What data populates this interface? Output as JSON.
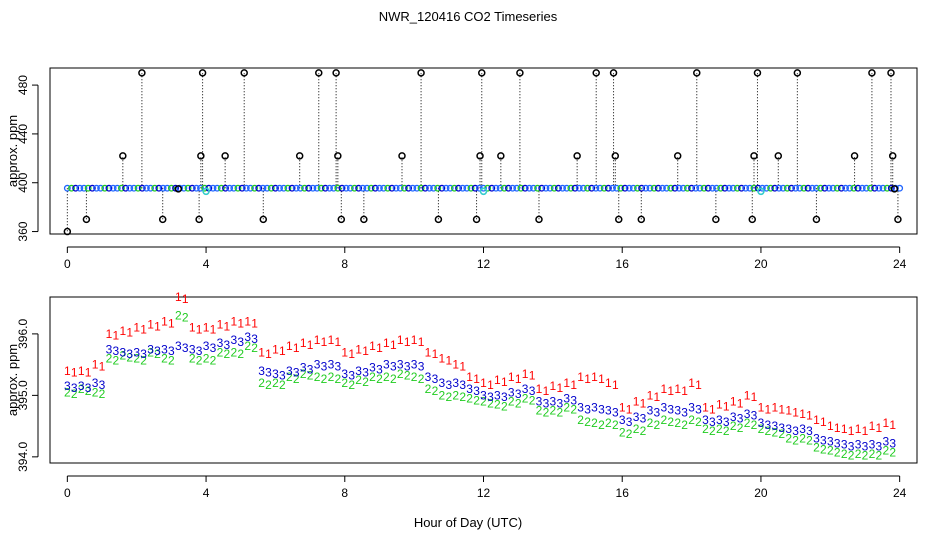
{
  "title": "NWR_120416  CO2 Timeseries",
  "xlabel": "Hour of Day (UTC)",
  "colors": {
    "series1": "#ff0000",
    "series2": "#22cc22",
    "series3": "#0000cc",
    "fill_top": "#2266ff",
    "highlight": "#33cccc",
    "markers": "#000000"
  },
  "chart_data": [
    {
      "type": "scatter",
      "panel": "top",
      "ylabel": "approx. ppm",
      "xlim": [
        -0.5,
        24.5
      ],
      "ylim": [
        358,
        494
      ],
      "xticks": [
        0,
        4,
        8,
        12,
        16,
        20,
        24
      ],
      "yticks": [
        360,
        400,
        440,
        480
      ],
      "tick_labels_x": [
        "0",
        "4",
        "8",
        "12",
        "16",
        "20",
        "24"
      ],
      "tick_labels_y": [
        "360",
        "400",
        "440",
        "480"
      ],
      "baseline": 395.5,
      "markers": [
        {
          "x": 0.0,
          "y": 360
        },
        {
          "x": 0.55,
          "y": 370
        },
        {
          "x": 1.6,
          "y": 422
        },
        {
          "x": 2.15,
          "y": 490
        },
        {
          "x": 2.75,
          "y": 370
        },
        {
          "x": 3.2,
          "y": 395
        },
        {
          "x": 3.8,
          "y": 370
        },
        {
          "x": 3.85,
          "y": 422
        },
        {
          "x": 3.9,
          "y": 490
        },
        {
          "x": 4.55,
          "y": 422
        },
        {
          "x": 5.1,
          "y": 490
        },
        {
          "x": 5.65,
          "y": 370
        },
        {
          "x": 6.7,
          "y": 422
        },
        {
          "x": 7.25,
          "y": 490
        },
        {
          "x": 7.75,
          "y": 490
        },
        {
          "x": 7.8,
          "y": 422
        },
        {
          "x": 7.9,
          "y": 370
        },
        {
          "x": 8.55,
          "y": 370
        },
        {
          "x": 9.65,
          "y": 422
        },
        {
          "x": 10.2,
          "y": 490
        },
        {
          "x": 10.7,
          "y": 370
        },
        {
          "x": 11.8,
          "y": 370
        },
        {
          "x": 11.9,
          "y": 422
        },
        {
          "x": 11.95,
          "y": 490
        },
        {
          "x": 12.5,
          "y": 422
        },
        {
          "x": 13.05,
          "y": 490
        },
        {
          "x": 13.6,
          "y": 370
        },
        {
          "x": 14.7,
          "y": 422
        },
        {
          "x": 15.25,
          "y": 490
        },
        {
          "x": 15.75,
          "y": 490
        },
        {
          "x": 15.8,
          "y": 422
        },
        {
          "x": 15.9,
          "y": 370
        },
        {
          "x": 16.55,
          "y": 370
        },
        {
          "x": 17.6,
          "y": 422
        },
        {
          "x": 18.15,
          "y": 490
        },
        {
          "x": 18.7,
          "y": 370
        },
        {
          "x": 19.75,
          "y": 370
        },
        {
          "x": 19.8,
          "y": 422
        },
        {
          "x": 19.9,
          "y": 490
        },
        {
          "x": 20.5,
          "y": 422
        },
        {
          "x": 21.05,
          "y": 490
        },
        {
          "x": 21.6,
          "y": 370
        },
        {
          "x": 22.7,
          "y": 422
        },
        {
          "x": 23.2,
          "y": 490
        },
        {
          "x": 23.75,
          "y": 490
        },
        {
          "x": 23.8,
          "y": 422
        },
        {
          "x": 23.85,
          "y": 395
        },
        {
          "x": 23.95,
          "y": 370
        }
      ],
      "highlight_points": [
        {
          "x": 4.0,
          "y": 393
        },
        {
          "x": 12.0,
          "y": 393
        },
        {
          "x": 20.0,
          "y": 393
        }
      ]
    },
    {
      "type": "scatter",
      "panel": "bottom",
      "ylabel": "approx. ppm",
      "xlim": [
        -0.5,
        24.5
      ],
      "ylim": [
        393.9,
        396.6
      ],
      "xticks": [
        0,
        4,
        8,
        12,
        16,
        20,
        24
      ],
      "yticks": [
        394.0,
        395.0,
        396.0
      ],
      "tick_labels_x": [
        "0",
        "4",
        "8",
        "12",
        "16",
        "20",
        "24"
      ],
      "tick_labels_y": [
        "394.0",
        "395.0",
        "396.0"
      ],
      "series": [
        {
          "name": "1",
          "x": [
            0.0,
            0.4,
            0.8,
            1.2,
            1.6,
            2.0,
            2.4,
            2.8,
            3.2,
            3.6,
            4.0,
            4.4,
            4.8,
            5.2,
            5.6,
            6.0,
            6.4,
            6.8,
            7.2,
            7.6,
            8.0,
            8.4,
            8.8,
            9.2,
            9.6,
            10.0,
            10.4,
            10.8,
            11.2,
            11.6,
            12.0,
            12.4,
            12.8,
            13.2,
            13.6,
            14.0,
            14.4,
            14.8,
            15.2,
            15.6,
            16.0,
            16.4,
            16.8,
            17.2,
            17.6,
            18.0,
            18.4,
            18.8,
            19.2,
            19.6,
            20.0,
            20.4,
            20.8,
            21.2,
            21.6,
            22.0,
            22.4,
            22.8,
            23.2,
            23.6
          ],
          "values": [
            395.4,
            395.4,
            395.5,
            396.0,
            396.05,
            396.1,
            396.15,
            396.2,
            396.6,
            396.1,
            396.1,
            396.15,
            396.2,
            396.2,
            395.7,
            395.75,
            395.8,
            395.85,
            395.9,
            395.9,
            395.7,
            395.75,
            395.8,
            395.85,
            395.9,
            395.9,
            395.7,
            395.6,
            395.5,
            395.3,
            395.2,
            395.25,
            395.3,
            395.35,
            395.1,
            395.15,
            395.2,
            395.3,
            395.3,
            395.2,
            394.8,
            394.9,
            395.0,
            395.1,
            395.1,
            395.2,
            394.8,
            394.85,
            394.9,
            395.0,
            394.8,
            394.8,
            394.75,
            394.7,
            394.6,
            394.5,
            394.45,
            394.45,
            394.5,
            394.55
          ]
        },
        {
          "name": "2",
          "x": [
            0.0,
            0.4,
            0.8,
            1.2,
            1.6,
            2.0,
            2.4,
            2.8,
            3.2,
            3.6,
            4.0,
            4.4,
            4.8,
            5.2,
            5.6,
            6.0,
            6.4,
            6.8,
            7.2,
            7.6,
            8.0,
            8.4,
            8.8,
            9.2,
            9.6,
            10.0,
            10.4,
            10.8,
            11.2,
            11.6,
            12.0,
            12.4,
            12.8,
            13.2,
            13.6,
            14.0,
            14.4,
            14.8,
            15.2,
            15.6,
            16.0,
            16.4,
            16.8,
            17.2,
            17.6,
            18.0,
            18.4,
            18.8,
            19.2,
            19.6,
            20.0,
            20.4,
            20.8,
            21.2,
            21.6,
            22.0,
            22.4,
            22.8,
            23.2,
            23.6
          ],
          "values": [
            395.05,
            395.1,
            395.05,
            395.6,
            395.65,
            395.6,
            395.7,
            395.6,
            396.3,
            395.6,
            395.6,
            395.7,
            395.7,
            395.8,
            395.2,
            395.2,
            395.3,
            395.35,
            395.3,
            395.3,
            395.2,
            395.25,
            395.3,
            395.3,
            395.35,
            395.3,
            395.1,
            395.0,
            395.0,
            394.95,
            394.9,
            394.85,
            394.9,
            394.95,
            394.75,
            394.75,
            394.8,
            394.6,
            394.55,
            394.55,
            394.4,
            394.45,
            394.55,
            394.6,
            394.55,
            394.6,
            394.45,
            394.45,
            394.5,
            394.55,
            394.45,
            394.4,
            394.3,
            394.3,
            394.15,
            394.1,
            394.05,
            394.05,
            394.05,
            394.1
          ]
        },
        {
          "name": "3",
          "x": [
            0.0,
            0.4,
            0.8,
            1.2,
            1.6,
            2.0,
            2.4,
            2.8,
            3.2,
            3.6,
            4.0,
            4.4,
            4.8,
            5.2,
            5.6,
            6.0,
            6.4,
            6.8,
            7.2,
            7.6,
            8.0,
            8.4,
            8.8,
            9.2,
            9.6,
            10.0,
            10.4,
            10.8,
            11.2,
            11.6,
            12.0,
            12.4,
            12.8,
            13.2,
            13.6,
            14.0,
            14.4,
            14.8,
            15.2,
            15.6,
            16.0,
            16.4,
            16.8,
            17.2,
            17.6,
            18.0,
            18.4,
            18.8,
            19.2,
            19.6,
            20.0,
            20.4,
            20.8,
            21.2,
            21.6,
            22.0,
            22.4,
            22.8,
            23.2,
            23.6
          ],
          "values": [
            395.15,
            395.15,
            395.2,
            395.75,
            395.7,
            395.7,
            395.75,
            395.75,
            395.8,
            395.75,
            395.8,
            395.85,
            395.9,
            395.95,
            395.4,
            395.35,
            395.4,
            395.45,
            395.5,
            395.5,
            395.35,
            395.4,
            395.45,
            395.5,
            395.5,
            395.5,
            395.3,
            395.2,
            395.2,
            395.1,
            395.0,
            395.0,
            395.05,
            395.1,
            394.9,
            394.9,
            394.95,
            394.8,
            394.8,
            394.75,
            394.6,
            394.65,
            394.75,
            394.8,
            394.75,
            394.8,
            394.6,
            394.6,
            394.65,
            394.7,
            394.55,
            394.5,
            394.45,
            394.45,
            394.3,
            394.25,
            394.2,
            394.2,
            394.2,
            394.25
          ]
        }
      ]
    }
  ]
}
